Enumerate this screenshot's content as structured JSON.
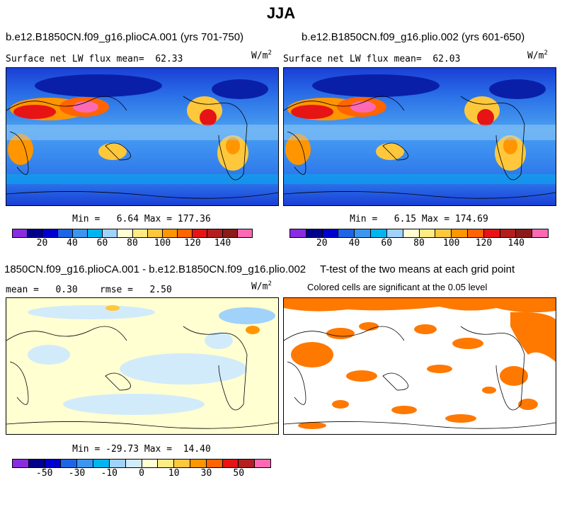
{
  "figure_title": "JJA",
  "units": "W/m",
  "units_exp": "2",
  "panels": {
    "p1": {
      "title": "b.e12.B1850CN.f09_g16.plioCA.001 (yrs 701-750)",
      "stat": "Surface net LW flux mean=  62.33",
      "minmax": "Min =   6.64 Max = 177.36"
    },
    "p2": {
      "title": "b.e12.B1850CN.f09_g16.plio.002 (yrs 601-650)",
      "stat": "Surface net LW flux mean=  62.03",
      "minmax": "Min =   6.15 Max = 174.69"
    },
    "p3": {
      "title": "1850CN.f09_g16.plioCA.001 - b.e12.B1850CN.f09_g16.plio.002",
      "stat": "mean =   0.30    rmse =   2.50",
      "minmax": "Min = -29.73 Max =  14.40"
    },
    "p4": {
      "title": "T-test of the two means at each grid point",
      "stat": "Colored cells are significant at the 0.05 level"
    }
  },
  "colorbar_abs": {
    "colors": [
      "#8a2be2",
      "#00008b",
      "#0000cd",
      "#1e64e6",
      "#3c96f0",
      "#00b4f0",
      "#a0d2fa",
      "#ffffd2",
      "#ffeb82",
      "#ffc83c",
      "#ff9600",
      "#ff6400",
      "#e61414",
      "#b41e1e",
      "#8b1a1a",
      "#ff69b4"
    ],
    "labels": [
      "20",
      "40",
      "60",
      "80",
      "100",
      "120",
      "140"
    ]
  },
  "colorbar_diff": {
    "colors": [
      "#8a2be2",
      "#00008b",
      "#0000cd",
      "#1e64e6",
      "#3c96f0",
      "#00b4f0",
      "#a0d2fa",
      "#d2ebfa",
      "#ffffd2",
      "#ffeb82",
      "#ffc83c",
      "#ff9600",
      "#ff6400",
      "#e61414",
      "#b41e1e",
      "#ff69b4"
    ],
    "labels": [
      "-50",
      "-30",
      "-10",
      "0",
      "10",
      "30",
      "50"
    ]
  }
}
